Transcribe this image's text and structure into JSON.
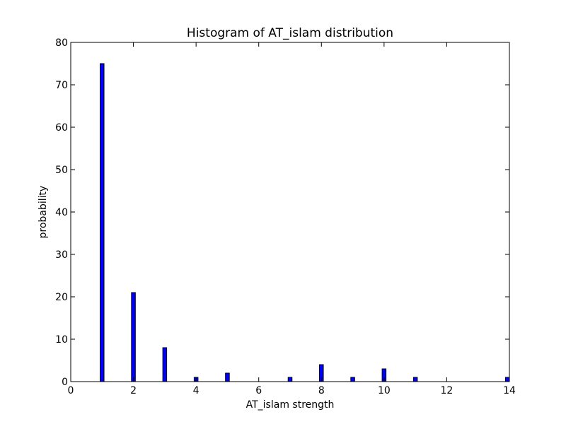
{
  "chart_data": {
    "type": "bar",
    "title": "Histogram of AT_islam  distribution",
    "xlabel": "AT_islam  strength",
    "ylabel": "probability",
    "xlim": [
      0,
      14
    ],
    "ylim": [
      0,
      80
    ],
    "x_ticks": [
      0,
      2,
      4,
      6,
      8,
      10,
      12,
      14
    ],
    "y_ticks": [
      0,
      10,
      20,
      30,
      40,
      50,
      60,
      70,
      80
    ],
    "bins": [
      {
        "x": 1,
        "value": 75
      },
      {
        "x": 2,
        "value": 21
      },
      {
        "x": 3,
        "value": 8
      },
      {
        "x": 4,
        "value": 1
      },
      {
        "x": 5,
        "value": 2
      },
      {
        "x": 7,
        "value": 1
      },
      {
        "x": 8,
        "value": 4
      },
      {
        "x": 9,
        "value": 1
      },
      {
        "x": 10,
        "value": 3
      },
      {
        "x": 11,
        "value": 1
      },
      {
        "x": 14,
        "value": 1
      }
    ],
    "bar_color": "#0000ff",
    "edge_color": "#000000",
    "grid": false,
    "legend": "none"
  }
}
